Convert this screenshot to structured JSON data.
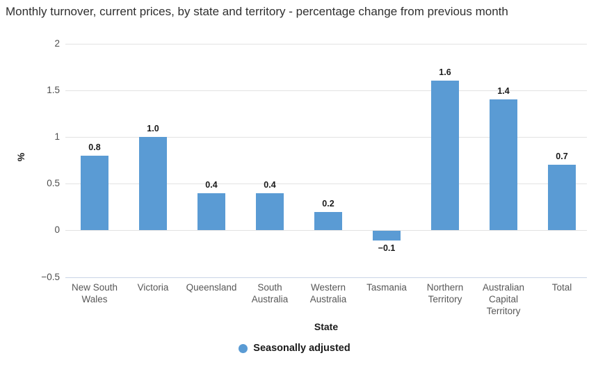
{
  "chart_data": {
    "type": "bar",
    "title": "Monthly turnover, current prices, by state and territory - percentage change from previous month",
    "categories": [
      "New South Wales",
      "Victoria",
      "Queensland",
      "South Australia",
      "Western Australia",
      "Tasmania",
      "Northern Territory",
      "Australian Capital Territory",
      "Total"
    ],
    "series": [
      {
        "name": "Seasonally adjusted",
        "values": [
          0.8,
          1.0,
          0.4,
          0.4,
          0.2,
          -0.1,
          1.6,
          1.4,
          0.7
        ]
      }
    ],
    "value_labels": [
      "0.8",
      "1.0",
      "0.4",
      "0.4",
      "0.2",
      "−0.1",
      "1.6",
      "1.4",
      "0.7"
    ],
    "xlabel": "State",
    "ylabel": "%",
    "ylim": [
      -0.5,
      2
    ],
    "yticks": [
      2,
      1.5,
      1,
      0.5,
      0,
      -0.5
    ],
    "ytick_labels": [
      "2",
      "1.5",
      "1",
      "0.5",
      "0",
      "−0.5"
    ],
    "grid": true,
    "legend_position": "bottom",
    "colors": {
      "bar": "#5a9bd4",
      "gridline": "#e2e2e2",
      "baseline": "#c9d4e6",
      "title_text": "#2f2f2f",
      "tick_text": "#4d4d4d",
      "category_text": "#575757",
      "label_text": "#1a1a1a"
    }
  }
}
